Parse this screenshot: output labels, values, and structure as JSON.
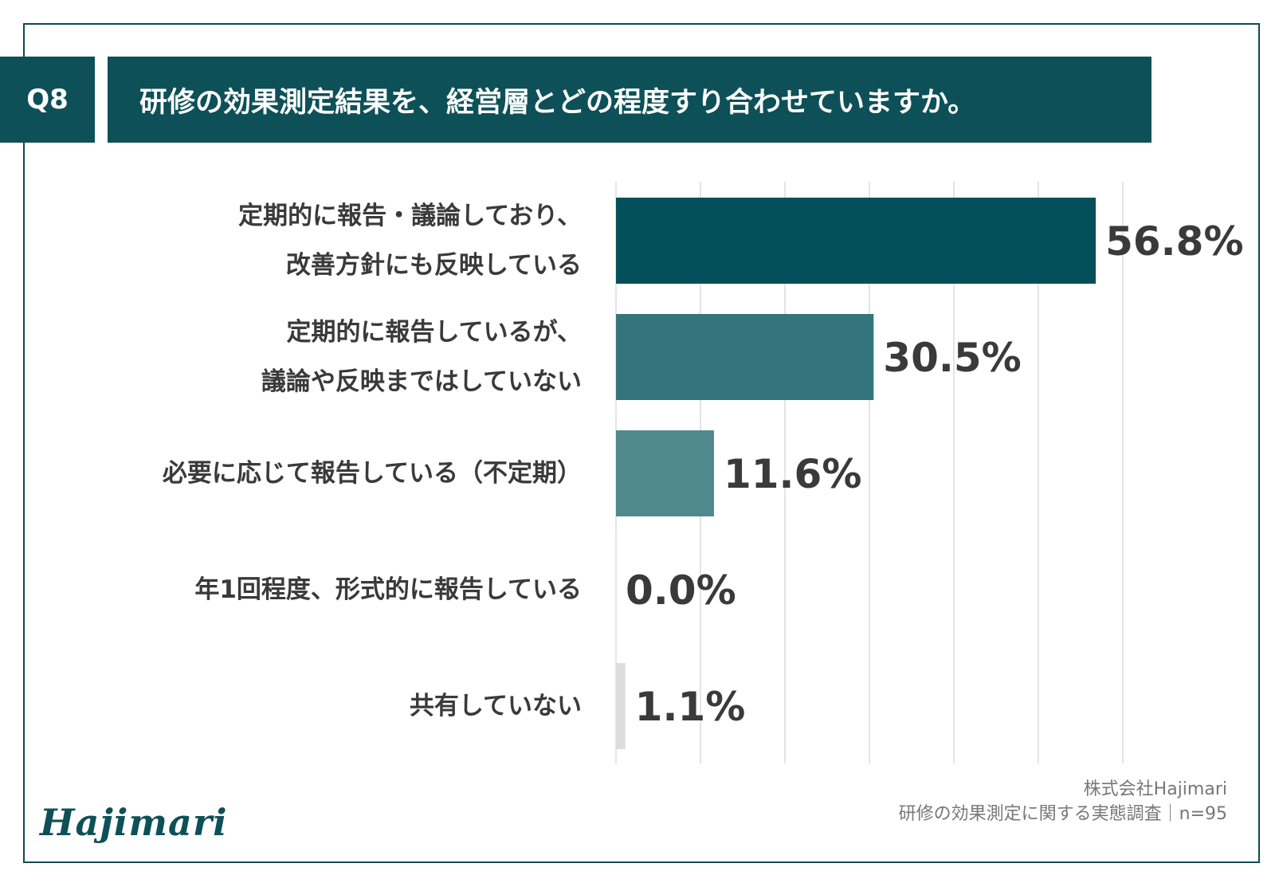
{
  "header": {
    "q_label": "Q8",
    "title": "研修の効果測定結果を、経営層とどの程度すり合わせていますか。"
  },
  "chart_data": {
    "type": "bar",
    "orientation": "horizontal",
    "categories": [
      [
        "定期的に報告・議論しており、",
        "改善方針にも反映している"
      ],
      [
        "定期的に報告しているが、",
        "議論や反映まではしていない"
      ],
      [
        "必要に応じて報告している（不定期）"
      ],
      [
        "年1回程度、形式的に報告している"
      ],
      [
        "共有していない"
      ]
    ],
    "values": [
      56.8,
      30.5,
      11.6,
      0.0,
      1.1
    ],
    "value_labels": [
      "56.8%",
      "30.5%",
      "11.6%",
      "0.0%",
      "1.1%"
    ],
    "bar_colors": [
      "#03505b",
      "#34757d",
      "#4f888d",
      "#cccccc",
      "#dddddd"
    ],
    "xlim": [
      0,
      60
    ],
    "grid": true,
    "gridline_step": 10
  },
  "footer": {
    "logo": "Hajimari",
    "company": "株式会社Hajimari",
    "source": "研修の効果測定に関する実態調査｜n=95"
  }
}
